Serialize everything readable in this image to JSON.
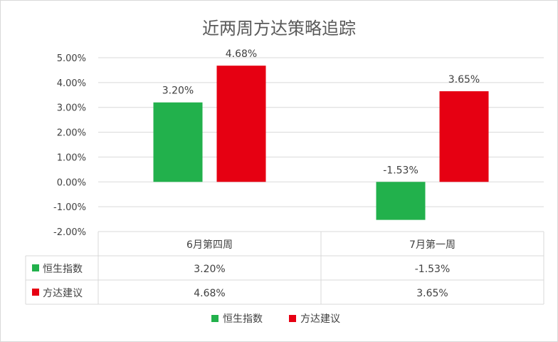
{
  "chart_data": {
    "type": "bar",
    "title": "近两周方达策略追踪",
    "categories": [
      "6月第四周",
      "7月第一周"
    ],
    "series": [
      {
        "name": "恒生指数",
        "color": "#22B14C",
        "values": [
          3.2,
          -1.53
        ],
        "labels": [
          "3.20%",
          "-1.53%"
        ]
      },
      {
        "name": "方达建议",
        "color": "#E60012",
        "values": [
          4.68,
          3.65
        ],
        "labels": [
          "4.68%",
          "3.65%"
        ]
      }
    ],
    "yticks": [
      "5.00%",
      "4.00%",
      "3.00%",
      "2.00%",
      "1.00%",
      "0.00%",
      "-1.00%",
      "-2.00%"
    ],
    "ylim": [
      -2,
      5
    ],
    "ylabel": "",
    "xlabel": "",
    "grid": true,
    "legend": "bottom",
    "data_table": true
  }
}
